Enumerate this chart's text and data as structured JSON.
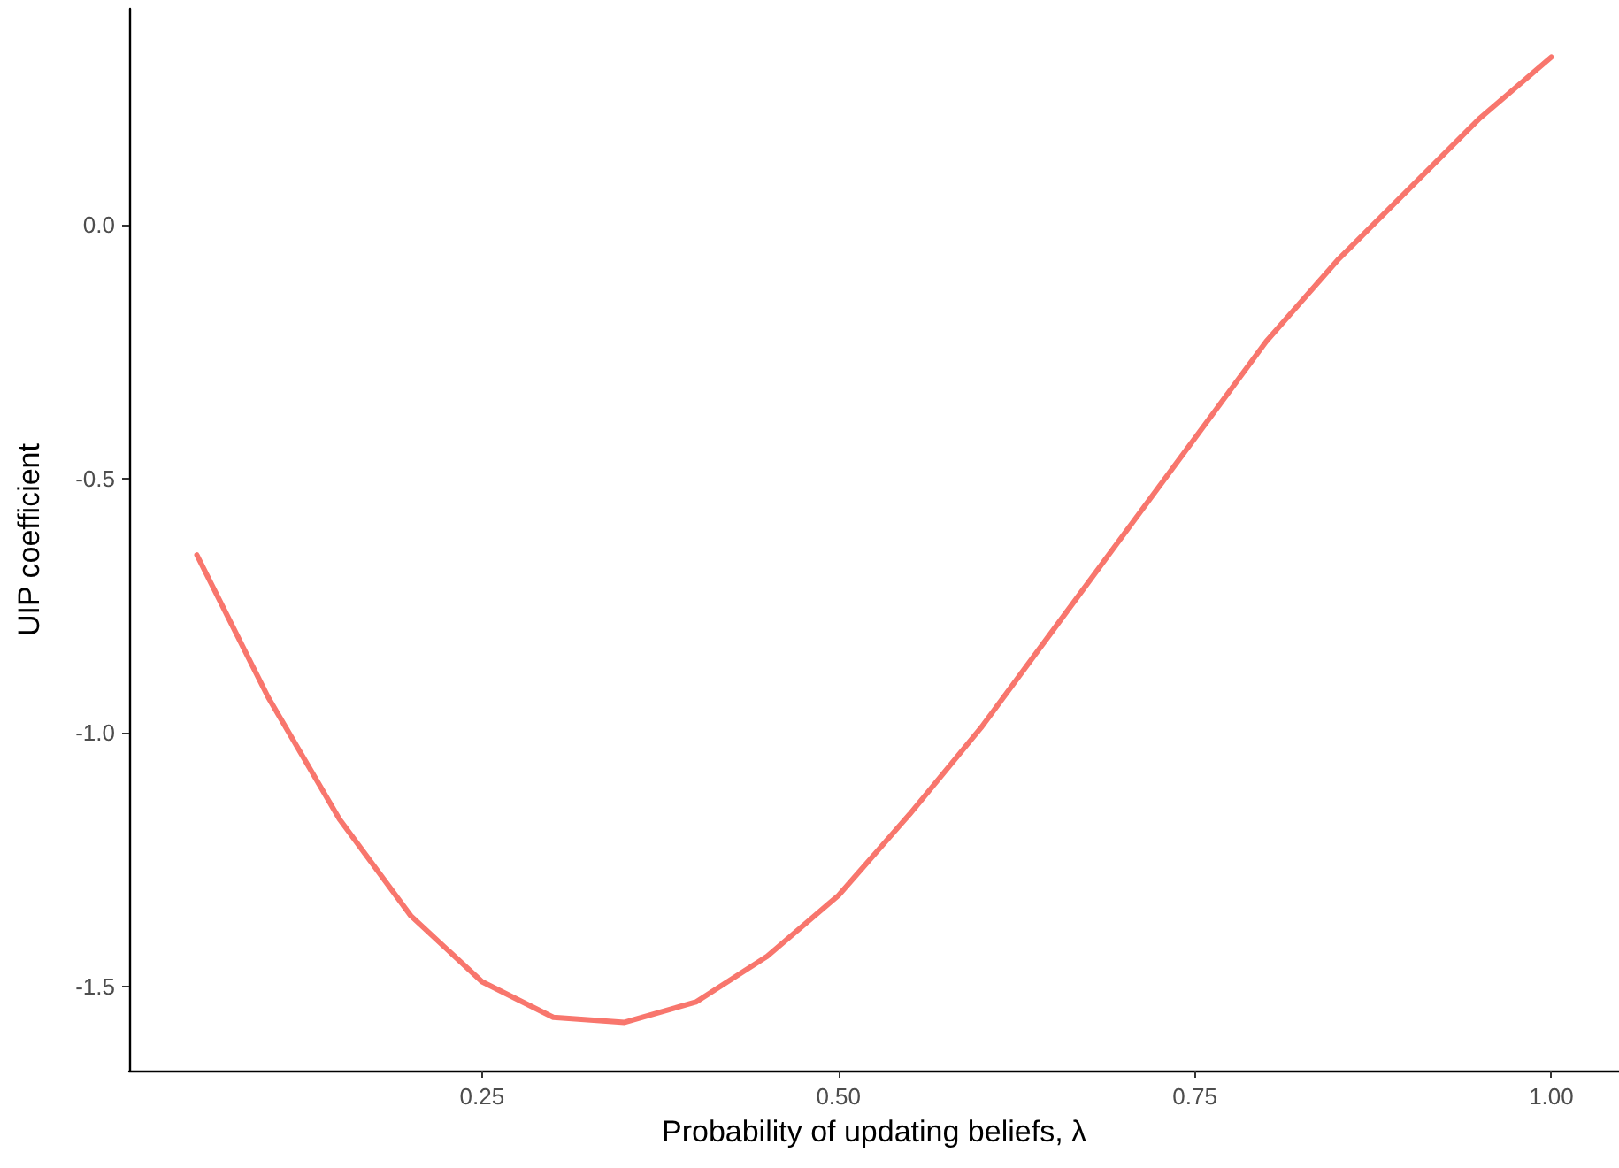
{
  "chart_data": {
    "type": "line",
    "xlabel": "Probability of updating beliefs, λ",
    "ylabel": "UIP coefficient",
    "x": [
      0.05,
      0.1,
      0.15,
      0.2,
      0.25,
      0.3,
      0.35,
      0.4,
      0.45,
      0.5,
      0.55,
      0.6,
      0.65,
      0.7,
      0.75,
      0.8,
      0.85,
      0.9,
      0.95,
      1.0
    ],
    "series": [
      {
        "color": "#f8766d",
        "values": [
          -0.65,
          -0.93,
          -1.17,
          -1.36,
          -1.49,
          -1.56,
          -1.57,
          -1.53,
          -1.44,
          -1.32,
          -1.16,
          -0.99,
          -0.8,
          -0.61,
          -0.42,
          -0.23,
          -0.07,
          0.07,
          0.21,
          0.33
        ]
      }
    ],
    "xlim": [
      0.0025,
      1.0475
    ],
    "ylim": [
      -1.665,
      0.425
    ],
    "xticks": [
      {
        "value": 0.25,
        "label": "0.25"
      },
      {
        "value": 0.5,
        "label": "0.50"
      },
      {
        "value": 0.75,
        "label": "0.75"
      },
      {
        "value": 1,
        "label": "1.00"
      }
    ],
    "yticks": [
      {
        "value": -1.5,
        "label": "-1.5"
      },
      {
        "value": -1,
        "label": "-1.0"
      },
      {
        "value": -0.5,
        "label": "-0.5"
      },
      {
        "value": 0,
        "label": "0.0"
      }
    ],
    "grid": false,
    "marker": "none",
    "line_style": "solid"
  }
}
